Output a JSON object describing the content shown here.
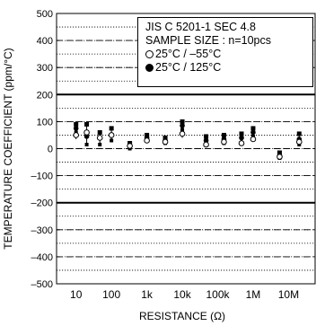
{
  "chart_data": {
    "type": "scatter",
    "xlabel": "RESISTANCE (Ω)",
    "ylabel": "TEMPERATURE COEFFICIENT (ppm/°C)",
    "ylim": [
      -500,
      500
    ],
    "yticks": [
      -500,
      -400,
      -300,
      -200,
      -100,
      0,
      100,
      200,
      300,
      400,
      500
    ],
    "ytick_labels": [
      "–500",
      "–400",
      "–300",
      "–200",
      "–100",
      "0",
      "100",
      "200",
      "300",
      "400",
      "500"
    ],
    "x_scale": "log",
    "xticks": [
      "10",
      "100",
      "1k",
      "10k",
      "100k",
      "1M",
      "10M"
    ],
    "xlim_decades": [
      0.45,
      7.75
    ],
    "spec_lines": [
      200,
      -200
    ],
    "annotation": {
      "line1": "JIS C 5201-1 SEC 4.8",
      "line2": "SAMPLE SIZE : n=10pcs"
    },
    "series": [
      {
        "name": "25°C / –55°C",
        "marker": "open-circle",
        "points": [
          {
            "x": 10,
            "max": 65,
            "mean": 50,
            "min": 35
          },
          {
            "x": 20,
            "max": 75,
            "mean": 60,
            "min": 40
          },
          {
            "x": 47,
            "max": 55,
            "mean": 40,
            "min": 20
          },
          {
            "x": 100,
            "max": 60,
            "mean": 50,
            "min": 35
          },
          {
            "x": 330,
            "max": 20,
            "mean": 10,
            "min": 0
          },
          {
            "x": 1000,
            "max": 40,
            "mean": 30,
            "min": 20
          },
          {
            "x": 3300,
            "max": 35,
            "mean": 25,
            "min": 15
          },
          {
            "x": 10000,
            "max": 70,
            "mean": 55,
            "min": 40
          },
          {
            "x": 47000,
            "max": 25,
            "mean": 15,
            "min": 5
          },
          {
            "x": 150000,
            "max": 35,
            "mean": 25,
            "min": 15
          },
          {
            "x": 470000,
            "max": 30,
            "mean": 20,
            "min": 10
          },
          {
            "x": 1000000,
            "max": 45,
            "mean": 35,
            "min": 25
          },
          {
            "x": 5600000,
            "max": -20,
            "mean": -30,
            "min": -40
          },
          {
            "x": 20000000,
            "max": 35,
            "mean": 25,
            "min": 15
          }
        ]
      },
      {
        "name": "25°C / 125°C",
        "marker": "filled-circle",
        "points": [
          {
            "x": 10,
            "max": 90,
            "mean": 75,
            "min": 60
          },
          {
            "x": 20,
            "max": 90,
            "mean": 45,
            "min": 15
          },
          {
            "x": 47,
            "max": 60,
            "mean": 40,
            "min": 15
          },
          {
            "x": 100,
            "max": 75,
            "mean": 50,
            "min": 30
          },
          {
            "x": 330,
            "max": 20,
            "mean": 10,
            "min": 0
          },
          {
            "x": 1000,
            "max": 50,
            "mean": 40,
            "min": 30
          },
          {
            "x": 3300,
            "max": 40,
            "mean": 30,
            "min": 20
          },
          {
            "x": 10000,
            "max": 100,
            "mean": 85,
            "min": 70
          },
          {
            "x": 47000,
            "max": 45,
            "mean": 30,
            "min": 15
          },
          {
            "x": 150000,
            "max": 50,
            "mean": 35,
            "min": 20
          },
          {
            "x": 470000,
            "max": 55,
            "mean": 40,
            "min": 20
          },
          {
            "x": 1000000,
            "max": 75,
            "mean": 60,
            "min": 45
          },
          {
            "x": 5600000,
            "max": -15,
            "mean": -25,
            "min": -35
          },
          {
            "x": 20000000,
            "max": 55,
            "mean": 35,
            "min": 15
          }
        ]
      }
    ]
  }
}
